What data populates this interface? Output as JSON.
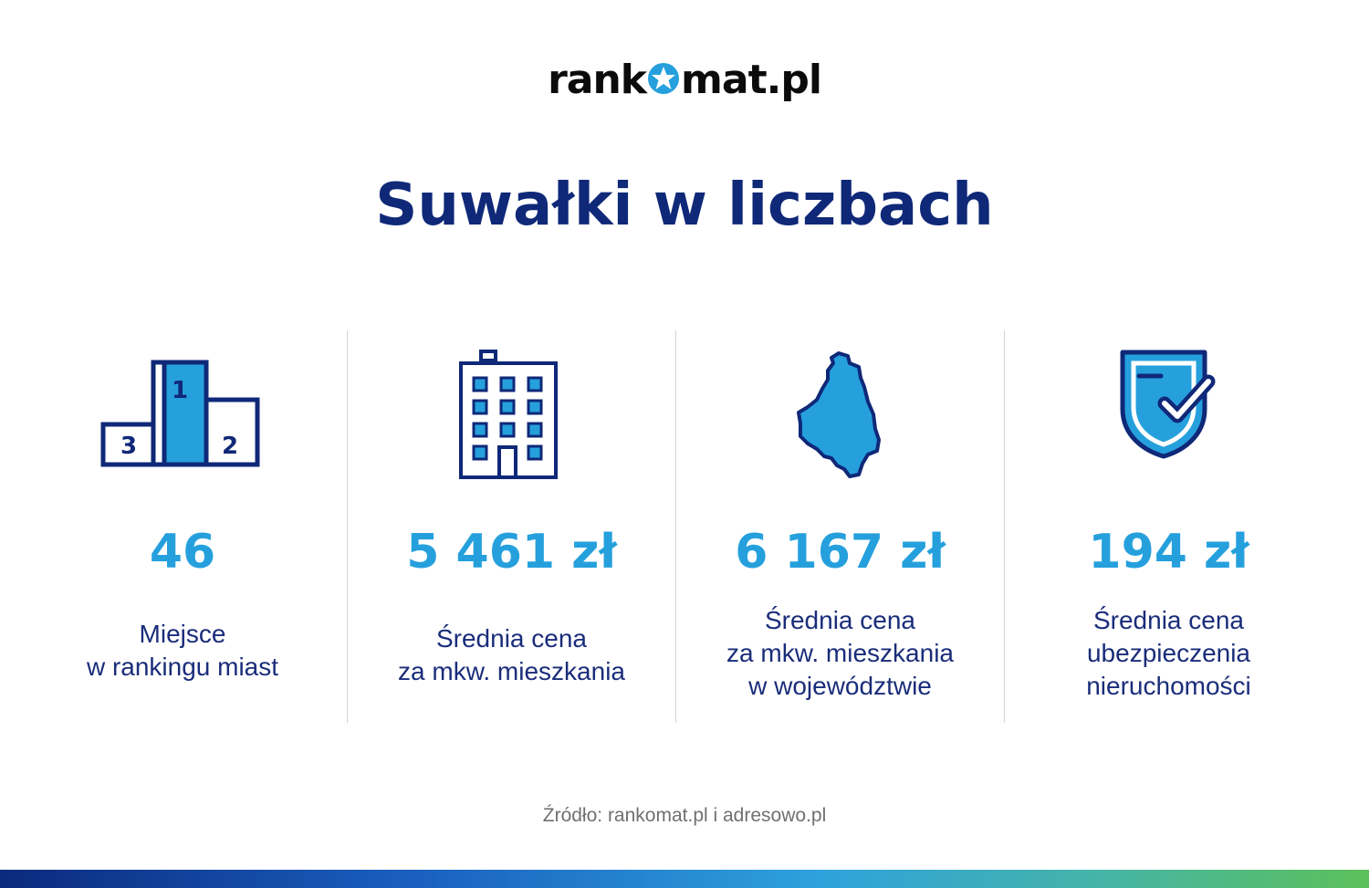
{
  "logo": {
    "left": "rank",
    "right": "mat.pl",
    "star_icon": "star-circle-icon",
    "colors": {
      "text": "#0b0b0b",
      "star": "#25a0dd"
    }
  },
  "title": "Suwałki w liczbach",
  "stats": [
    {
      "icon": "podium-icon",
      "podium_numbers": [
        "1",
        "2",
        "3"
      ],
      "value": "46",
      "desc": [
        "Miejsce",
        "w rankingu miast"
      ]
    },
    {
      "icon": "building-icon",
      "value": "5 461 zł",
      "desc": [
        "Średnia cena",
        "za mkw. mieszkania"
      ]
    },
    {
      "icon": "voivodeship-map-icon",
      "value": "6 167 zł",
      "desc": [
        "Średnia cena",
        "za mkw. mieszkania",
        "w województwie"
      ]
    },
    {
      "icon": "shield-check-icon",
      "value": "194 zł",
      "desc": [
        "Średnia cena",
        "ubezpieczenia",
        "nieruchomości"
      ]
    }
  ],
  "source": "Źródło: rankomat.pl i adresowo.pl",
  "colors": {
    "title": "#0f2878",
    "value": "#25a0dd",
    "desc": "#1a2d7a",
    "icon_stroke": "#0f2878",
    "icon_fill": "#25a0dd",
    "divider": "#d4d4d4",
    "source": "#707070"
  }
}
